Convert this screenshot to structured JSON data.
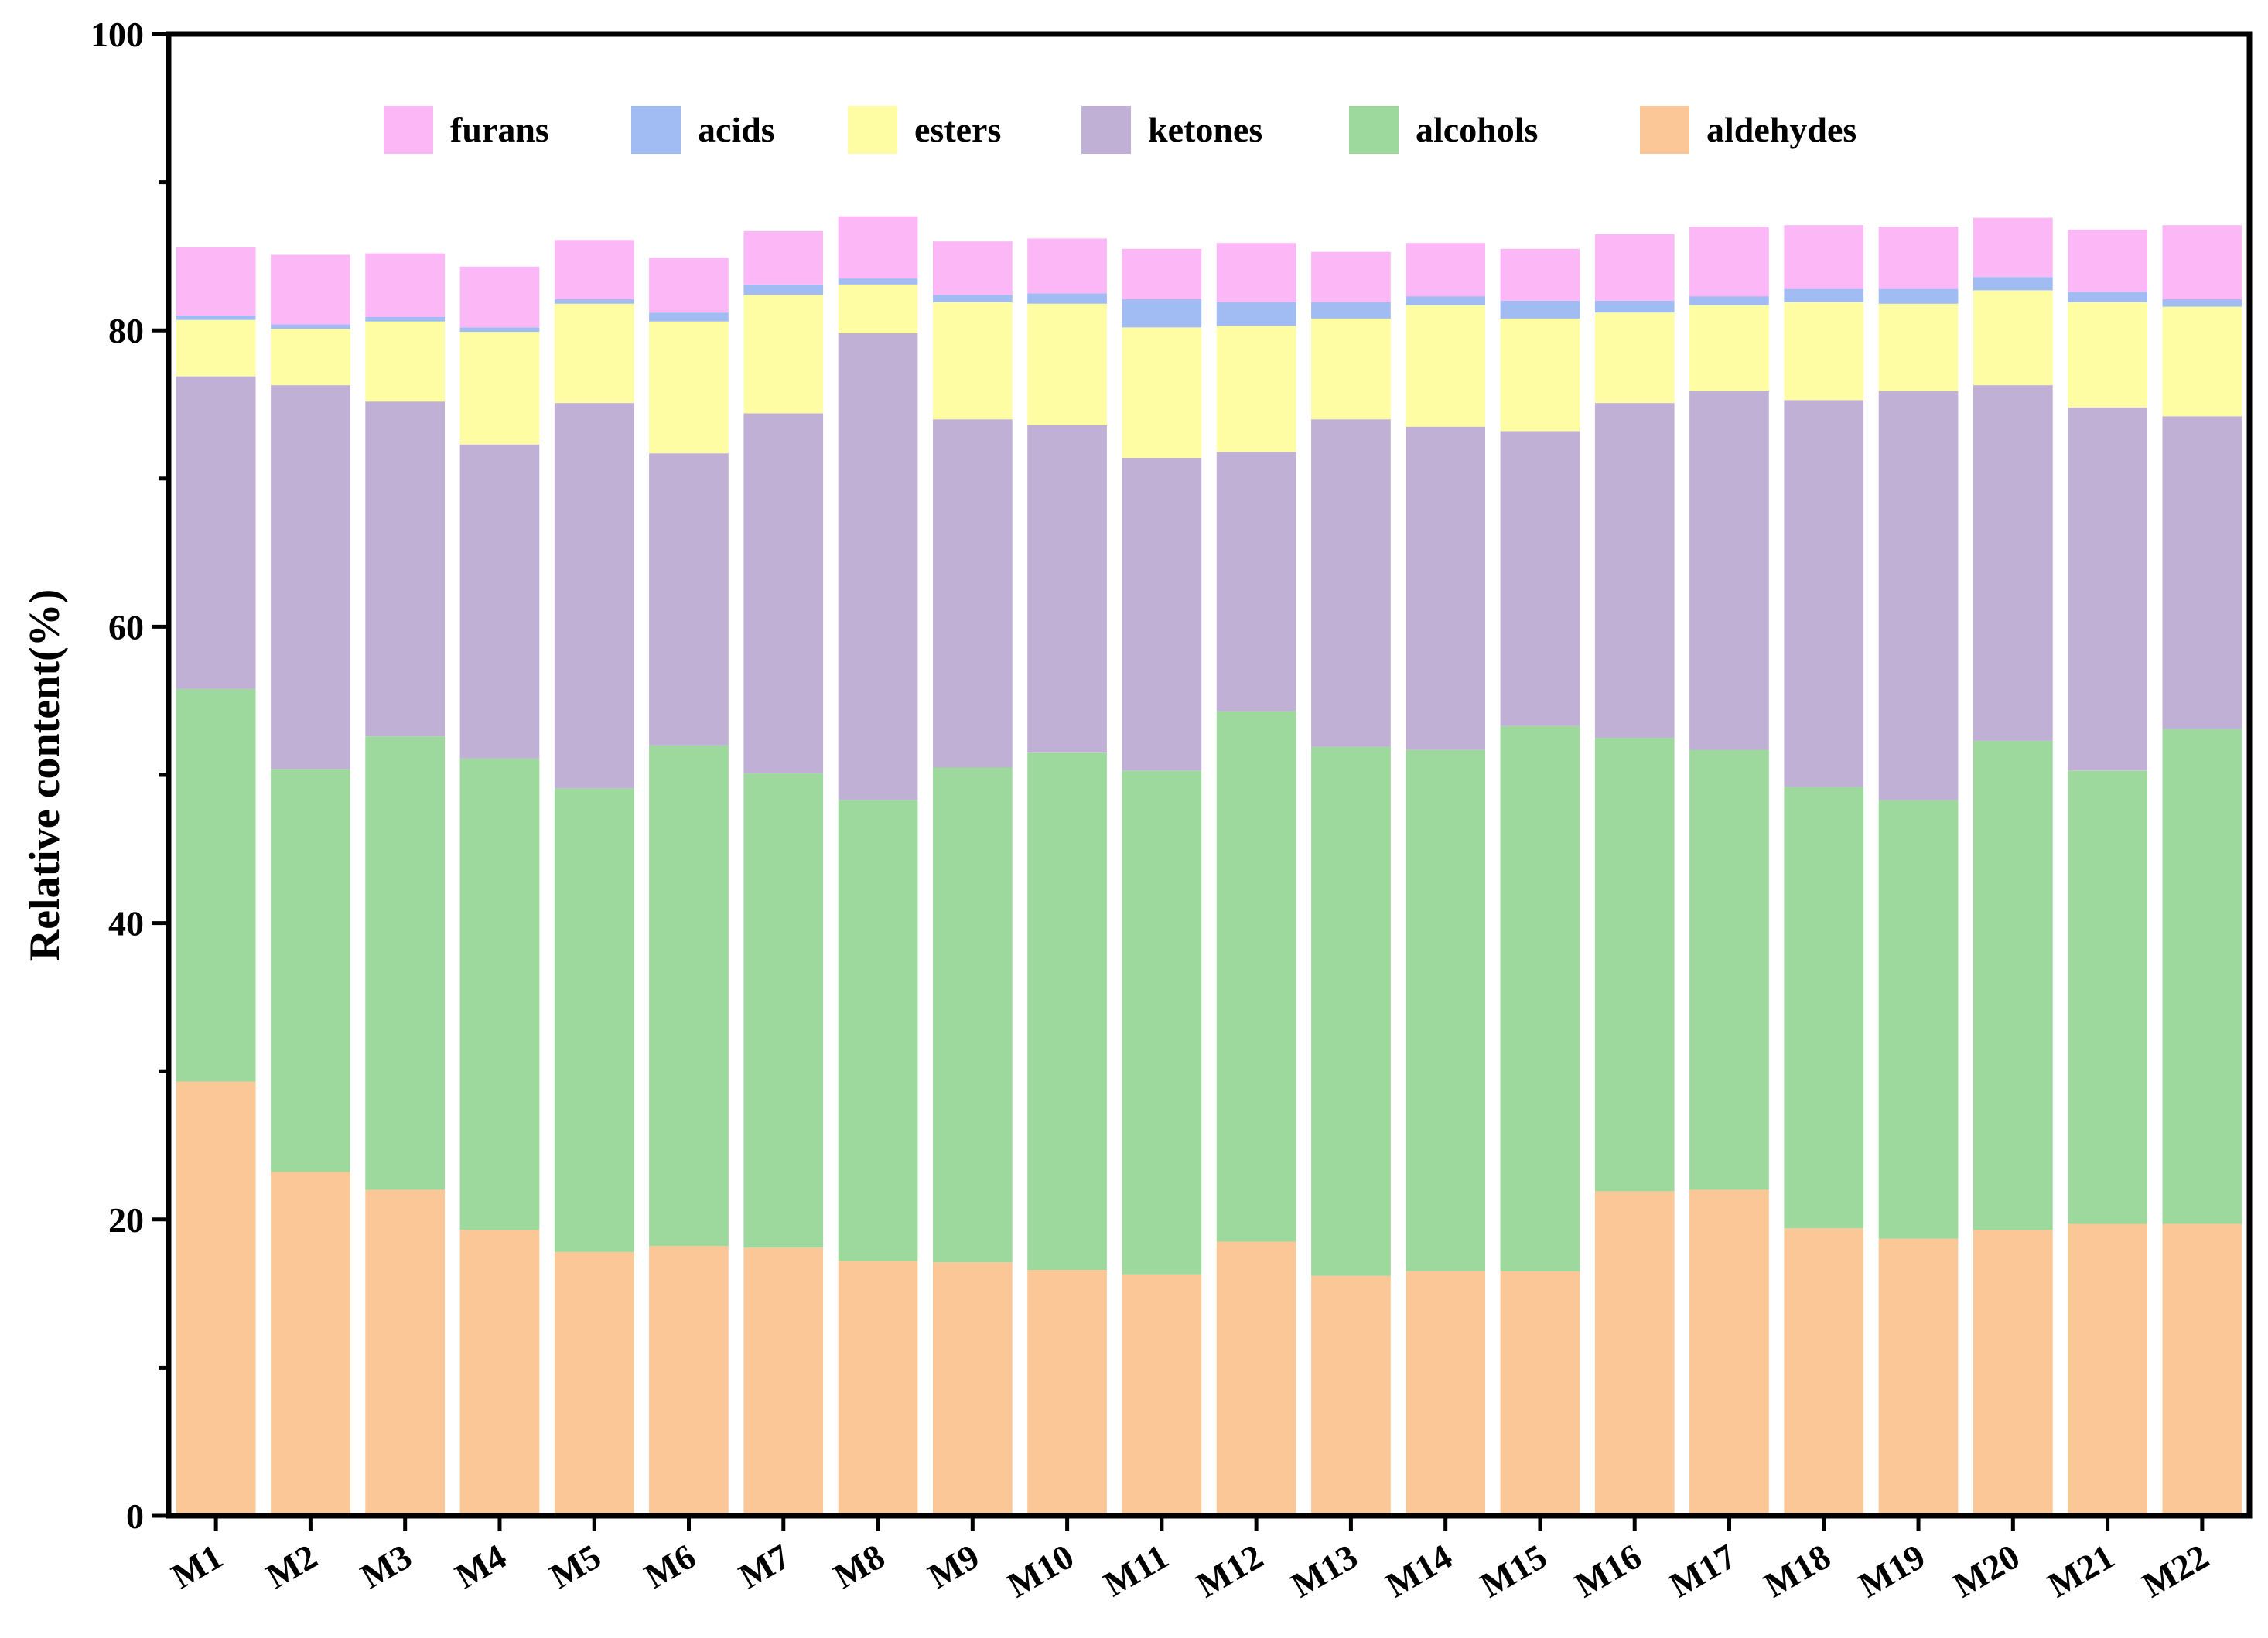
{
  "chart_data": {
    "type": "bar",
    "stacked": true,
    "title": "",
    "xlabel": "",
    "ylabel": "Relative content(%)",
    "ylim": [
      0,
      100
    ],
    "yticks": [
      0,
      20,
      40,
      60,
      80,
      100
    ],
    "categories": [
      "M1",
      "M2",
      "M3",
      "M4",
      "M5",
      "M6",
      "M7",
      "M8",
      "M9",
      "M10",
      "M11",
      "M12",
      "M13",
      "M14",
      "M15",
      "M16",
      "M17",
      "M18",
      "M19",
      "M20",
      "M21",
      "M22"
    ],
    "series": [
      {
        "name": "aldehydes",
        "color": "#FBC797",
        "values": [
          29.3,
          23.2,
          22.0,
          19.3,
          17.8,
          18.2,
          18.1,
          17.2,
          17.1,
          16.6,
          16.3,
          18.5,
          16.2,
          16.5,
          16.5,
          21.9,
          22.0,
          19.4,
          18.7,
          19.3,
          19.7,
          19.7
        ]
      },
      {
        "name": "alcohols",
        "color": "#9DD89C",
        "values": [
          26.5,
          27.2,
          30.6,
          31.8,
          31.3,
          33.8,
          32.0,
          31.1,
          33.4,
          34.9,
          34.0,
          35.8,
          35.7,
          35.2,
          36.8,
          30.6,
          29.7,
          29.8,
          29.6,
          33.0,
          30.6,
          33.4
        ]
      },
      {
        "name": "ketones",
        "color": "#C1B0D6",
        "values": [
          21.1,
          25.9,
          22.6,
          21.2,
          26.0,
          19.7,
          24.3,
          31.5,
          23.5,
          22.1,
          21.1,
          17.5,
          22.1,
          21.8,
          19.9,
          22.6,
          24.2,
          26.1,
          27.6,
          24.0,
          24.5,
          21.1
        ]
      },
      {
        "name": "esters",
        "color": "#FEFDA3",
        "values": [
          3.8,
          3.8,
          5.4,
          7.6,
          6.7,
          8.9,
          8.0,
          3.3,
          7.9,
          8.2,
          8.8,
          8.5,
          6.8,
          8.2,
          7.6,
          6.1,
          5.8,
          6.6,
          5.9,
          6.4,
          7.1,
          7.4
        ]
      },
      {
        "name": "acids",
        "color": "#A0BCF2",
        "values": [
          0.3,
          0.3,
          0.3,
          0.3,
          0.3,
          0.6,
          0.7,
          0.4,
          0.5,
          0.7,
          1.9,
          1.6,
          1.1,
          0.6,
          1.2,
          0.8,
          0.6,
          0.9,
          1.0,
          0.9,
          0.7,
          0.5
        ]
      },
      {
        "name": "furans",
        "color": "#FCB7F6",
        "values": [
          4.6,
          4.7,
          4.3,
          4.1,
          4.0,
          3.7,
          3.6,
          4.2,
          3.6,
          3.7,
          3.4,
          4.0,
          3.4,
          3.6,
          3.5,
          4.5,
          4.7,
          4.3,
          4.2,
          4.0,
          4.2,
          5.0
        ]
      }
    ],
    "legend": {
      "placement": "top-center",
      "order": [
        "furans",
        "acids",
        "esters",
        "ketones",
        "alcohols",
        "aldehydes"
      ]
    }
  }
}
